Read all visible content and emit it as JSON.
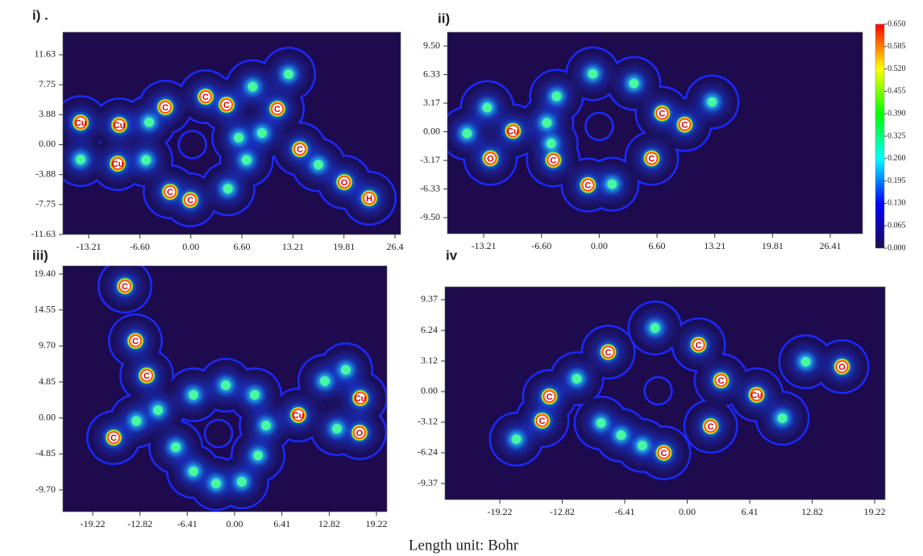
{
  "chart_data": [
    {
      "type": "contour",
      "title": "i) .",
      "xlim": [
        -16.55,
        27.14
      ],
      "ylim": [
        -11.63,
        14.55
      ],
      "xticks": [
        -13.21,
        {
          "value": -6.6,
          "label": "-6.60"
        },
        {
          "value": 0,
          "label": "0.00"
        },
        {
          "value": 6.6,
          "label": "6.60"
        },
        13.21,
        19.81,
        {
          "value": 26.41,
          "label": "26.4"
        }
      ],
      "yticks": [
        11.63,
        7.75,
        3.88,
        {
          "value": 0,
          "label": "0.00"
        },
        -3.88,
        -7.75,
        -11.63
      ],
      "peaks": {
        "x": [
          -14.25,
          -9.25,
          -9.46,
          -14.25,
          -3.3,
          1.91,
          4.62,
          11.19,
          14.11,
          19.85,
          23.08,
          -2.68,
          -0.07,
          12.65,
          -5.4,
          -5.8,
          4.8,
          7.2,
          9.2,
          16.5,
          8.0,
          6.2
        ],
        "y": [
          2.86,
          2.55,
          -2.45,
          -1.93,
          4.85,
          6.2,
          5.16,
          4.64,
          -0.58,
          -4.85,
          -6.94,
          -6.1,
          -7.15,
          9.12,
          2.9,
          -2.0,
          -5.7,
          -2.0,
          1.5,
          -2.6,
          7.5,
          0.9
        ],
        "labels": [
          "Cu",
          "Cu",
          "Cu",
          null,
          "C",
          "C",
          "C",
          "C",
          "C",
          "O",
          "H",
          "C",
          "C",
          null,
          null,
          null,
          null,
          null,
          null,
          null,
          null,
          null
        ]
      },
      "ring": {
        "x": 0.2,
        "y": 0.0
      }
    },
    {
      "type": "contour",
      "title": "ii)",
      "xlim": [
        -17.36,
        30.1
      ],
      "ylim": [
        -11.28,
        11.02
      ],
      "xticks": [
        -13.21,
        {
          "value": -6.6,
          "label": "-6.60"
        },
        {
          "value": 0,
          "label": "0.00"
        },
        {
          "value": 6.6,
          "label": "6.60"
        },
        13.21,
        19.81,
        26.41
      ],
      "yticks": [
        {
          "value": 9.5,
          "label": "9.50"
        },
        6.33,
        3.17,
        {
          "value": 0,
          "label": "0.00"
        },
        -3.17,
        -6.33,
        {
          "value": -9.5,
          "label": "-9.50"
        }
      ],
      "peaks": {
        "x": [
          -15.12,
          -12.81,
          -9.86,
          -12.44,
          -5.25,
          -1.29,
          1.47,
          -4.88,
          -0.74,
          3.96,
          7.19,
          9.77,
          5.99,
          12.9,
          -6.0,
          -5.5
        ],
        "y": [
          -0.18,
          2.68,
          0.09,
          -2.94,
          -3.12,
          -5.89,
          -5.8,
          3.93,
          6.42,
          5.35,
          2.05,
          0.8,
          -2.94,
          3.3,
          1.0,
          -1.3
        ],
        "labels": [
          null,
          null,
          "Cu",
          "O",
          "C",
          "C",
          null,
          null,
          null,
          null,
          "C",
          "C",
          "C",
          null,
          null,
          null
        ]
      },
      "ring": {
        "x": 0.0,
        "y": 0.6
      }
    },
    {
      "type": "contour",
      "title": "iii)",
      "xlim": [
        -23.26,
        20.64
      ],
      "ylim": [
        -12.63,
        20.49
      ],
      "xticks": [
        -19.22,
        -12.82,
        -6.41,
        {
          "value": 0,
          "label": "0.00"
        },
        6.41,
        12.82,
        19.22
      ],
      "yticks": [
        {
          "value": 19.4,
          "label": "19.40"
        },
        14.55,
        {
          "value": 9.7,
          "label": "9.70"
        },
        4.85,
        {
          "value": 0,
          "label": "0.00"
        },
        -4.85,
        {
          "value": -9.7,
          "label": "-9.70"
        }
      ],
      "peaks": {
        "x": [
          -14.85,
          -13.43,
          -11.9,
          -16.38,
          -10.37,
          -5.57,
          -1.2,
          2.73,
          4.26,
          0.98,
          -2.51,
          -5.57,
          -7.97,
          3.17,
          8.63,
          12.23,
          15.07,
          17.04,
          13.87,
          16.93,
          -13.3
        ],
        "y": [
          17.77,
          10.39,
          5.72,
          -2.64,
          1.05,
          3.12,
          4.42,
          3.12,
          -1.01,
          -8.61,
          -8.83,
          -7.2,
          -3.94,
          -5.05,
          0.4,
          4.96,
          6.48,
          2.68,
          -1.44,
          -1.98,
          -0.4
        ],
        "labels": [
          "C",
          "C",
          "C",
          "C",
          null,
          null,
          null,
          null,
          null,
          null,
          null,
          null,
          null,
          null,
          "Cu",
          null,
          null,
          "Cu",
          null,
          "O",
          null
        ]
      },
      "ring": {
        "x": -2.18,
        "y": -2.1
      }
    },
    {
      "type": "contour",
      "title": "iv",
      "xlim": [
        -24.84,
        20.29
      ],
      "ylim": [
        -11.01,
        10.68
      ],
      "xticks": [
        -19.22,
        -12.82,
        -6.41,
        {
          "value": 0,
          "label": "0.00"
        },
        6.41,
        12.82,
        19.22
      ],
      "yticks": [
        9.37,
        6.24,
        3.12,
        {
          "value": 0,
          "label": "0.00"
        },
        -3.12,
        -6.24,
        -9.37
      ],
      "peaks": {
        "x": [
          -14.13,
          -14.88,
          -8.1,
          -2.4,
          -3.31,
          1.16,
          3.47,
          2.4,
          7.11,
          9.75,
          12.15,
          15.87,
          -6.78,
          -8.84,
          -17.52,
          -11.32,
          -4.6
        ],
        "y": [
          -0.49,
          -2.96,
          4.03,
          -6.24,
          6.49,
          4.77,
          1.15,
          -3.53,
          -0.33,
          -2.71,
          3.04,
          2.55,
          -4.44,
          -3.2,
          -4.85,
          1.31,
          -5.5
        ],
        "labels": [
          "C",
          "C",
          "C",
          "C",
          null,
          "C",
          "C",
          "C",
          "Cu",
          null,
          null,
          "O",
          null,
          null,
          null,
          null,
          null
        ]
      },
      "ring": {
        "x": -2.98,
        "y": 0.08
      }
    }
  ],
  "colorbar": {
    "lim": [
      0,
      0.65
    ],
    "ticks": [
      {
        "value": 0.65,
        "label": "0.650"
      },
      0.585,
      {
        "value": 0.52,
        "label": "0.520"
      },
      0.455,
      {
        "value": 0.39,
        "label": "0.390"
      },
      0.325,
      {
        "value": 0.26,
        "label": "0.260"
      },
      0.195,
      {
        "value": 0.13,
        "label": "0.130"
      },
      0.065,
      {
        "value": 0,
        "label": "0.000"
      }
    ],
    "colormap": [
      "#1e0b4e",
      "#0000ff",
      "#00ffff",
      "#00ff00",
      "#ffff00",
      "#ff0000"
    ]
  },
  "footer": "Length unit: Bohr"
}
